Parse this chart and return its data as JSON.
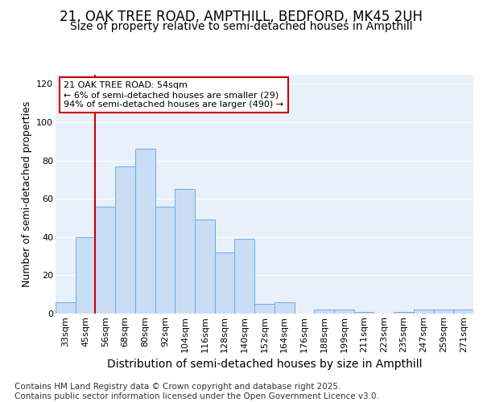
{
  "title_line1": "21, OAK TREE ROAD, AMPTHILL, BEDFORD, MK45 2UH",
  "title_line2": "Size of property relative to semi-detached houses in Ampthill",
  "xlabel": "Distribution of semi-detached houses by size in Ampthill",
  "ylabel": "Number of semi-detached properties",
  "categories": [
    "33sqm",
    "45sqm",
    "56sqm",
    "68sqm",
    "80sqm",
    "92sqm",
    "104sqm",
    "116sqm",
    "128sqm",
    "140sqm",
    "152sqm",
    "164sqm",
    "176sqm",
    "188sqm",
    "199sqm",
    "211sqm",
    "223sqm",
    "235sqm",
    "247sqm",
    "259sqm",
    "271sqm"
  ],
  "bar_values": [
    6,
    40,
    56,
    77,
    86,
    56,
    65,
    49,
    32,
    39,
    5,
    6,
    0,
    2,
    2,
    1,
    0,
    1,
    2,
    2,
    2
  ],
  "bar_color": "#c9ddf5",
  "bar_edge_color": "#6aaee8",
  "vline_color": "#cc0000",
  "vline_pos": 1.5,
  "annotation_text": "21 OAK TREE ROAD: 54sqm\n← 6% of semi-detached houses are smaller (29)\n94% of semi-detached houses are larger (490) →",
  "annotation_box_color": "#ffffff",
  "annotation_edge_color": "#cc0000",
  "ylim": [
    0,
    125
  ],
  "yticks": [
    0,
    20,
    40,
    60,
    80,
    100,
    120
  ],
  "footnote": "Contains HM Land Registry data © Crown copyright and database right 2025.\nContains public sector information licensed under the Open Government Licence v3.0.",
  "plot_bg_color": "#e8f0fa",
  "fig_bg_color": "#ffffff",
  "grid_color": "#ffffff",
  "title_fontsize": 12,
  "subtitle_fontsize": 10,
  "tick_fontsize": 8,
  "ylabel_fontsize": 9,
  "xlabel_fontsize": 10,
  "annot_fontsize": 8,
  "footnote_fontsize": 7.5
}
